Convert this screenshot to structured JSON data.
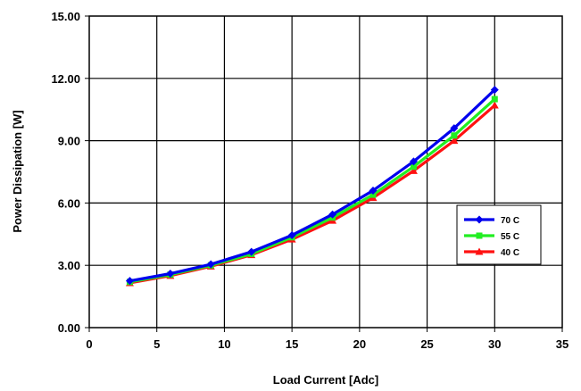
{
  "chart_data": {
    "type": "line",
    "title": "",
    "xlabel": "Load Current [Adc]",
    "ylabel": "Power Dissipation [W]",
    "xlim": [
      0,
      35
    ],
    "ylim": [
      0,
      15
    ],
    "xticks": [
      0,
      5,
      10,
      15,
      20,
      25,
      30,
      35
    ],
    "xtick_labels": [
      "0",
      "5",
      "10",
      "15",
      "20",
      "25",
      "30",
      "35"
    ],
    "yticks": [
      0,
      3,
      6,
      9,
      12,
      15
    ],
    "ytick_labels": [
      "0.00",
      "3.00",
      "6.00",
      "9.00",
      "12.00",
      "15.00"
    ],
    "grid": true,
    "legend_position": "right",
    "x": [
      3,
      6,
      9,
      12,
      15,
      18,
      21,
      24,
      27,
      30
    ],
    "series": [
      {
        "name": "70 C",
        "color": "#0000ee",
        "marker": "diamond",
        "values": [
          2.25,
          2.6,
          3.05,
          3.65,
          4.45,
          5.45,
          6.6,
          8.0,
          9.6,
          11.45
        ]
      },
      {
        "name": "55 C",
        "color": "#22ee22",
        "marker": "square",
        "values": [
          2.2,
          2.55,
          3.0,
          3.55,
          4.35,
          5.3,
          6.4,
          7.75,
          9.25,
          11.0
        ]
      },
      {
        "name": "40 C",
        "color": "#ff1111",
        "marker": "triangle",
        "values": [
          2.15,
          2.5,
          2.95,
          3.5,
          4.25,
          5.15,
          6.25,
          7.55,
          9.0,
          10.7
        ]
      }
    ]
  }
}
